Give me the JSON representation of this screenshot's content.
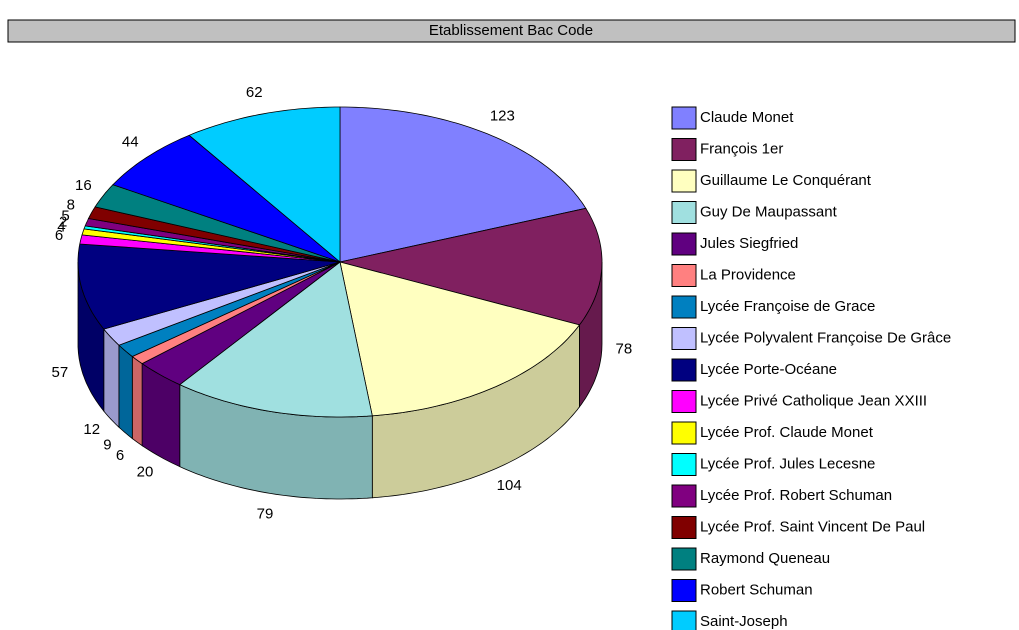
{
  "chart_data": {
    "type": "pie",
    "title": "Etablissement Bac Code",
    "categories": [
      "Claude Monet",
      "François 1er",
      "Guillaume Le Conquérant",
      "Guy De Maupassant",
      "Jules Siegfried",
      "La Providence",
      "Lycée Françoise de Grace",
      "Lycée Polyvalent Françoise De Grâce",
      "Lycée Porte-Océane",
      "Lycée Privé Catholique Jean XXIII",
      "Lycée Prof. Claude Monet",
      "Lycée Prof. Jules Lecesne",
      "Lycée Prof. Robert Schuman",
      "Lycée Prof. Saint Vincent De Paul",
      "Raymond Queneau",
      "Robert Schuman",
      "Saint-Joseph"
    ],
    "values": [
      123,
      78,
      104,
      79,
      20,
      6,
      9,
      12,
      57,
      6,
      4,
      2,
      5,
      8,
      16,
      44,
      62
    ],
    "colors": [
      "#8080ff",
      "#802060",
      "#ffffc0",
      "#a0e0e0",
      "#600080",
      "#ff8080",
      "#0080c0",
      "#c0c0ff",
      "#000080",
      "#ff00ff",
      "#ffff00",
      "#00ffff",
      "#800080",
      "#800000",
      "#008080",
      "#0000ff",
      "#00ccff"
    ],
    "legend": "right"
  }
}
